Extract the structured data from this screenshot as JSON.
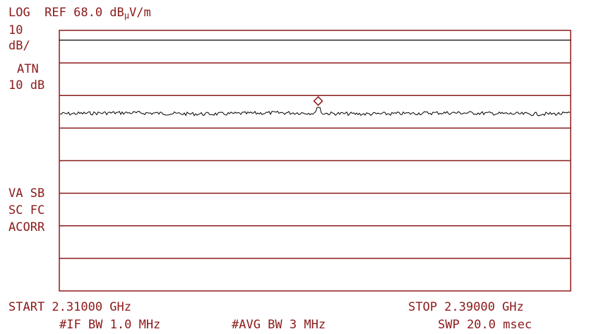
{
  "header": {
    "ref_line": "LOG  REF 68.0 dB",
    "ref_sub": "µ",
    "ref_unit": "V/m"
  },
  "side_labels": {
    "scale_value": "10",
    "scale_unit": "dB/",
    "atn_label": "ATN",
    "atn_value": "10 dB",
    "va_sb": "VA SB",
    "sc_fc": "SC FC",
    "acorr": "ACORR"
  },
  "footer": {
    "start": "START 2.31000 GHz",
    "stop": "STOP 2.39000 GHz",
    "if_bw": "#IF BW 1.0 MHz",
    "avg_bw": "#AVG BW 3 MHz",
    "swp": "SWP 20.0 msec"
  },
  "chart_data": {
    "type": "line",
    "x_start_ghz": 2.31,
    "x_stop_ghz": 2.39,
    "ref_level_dbuv_m": 68.0,
    "db_per_div": 10,
    "y_divisions": 8,
    "x_divisions": 1,
    "reference_line_dbuv_m": 65.0,
    "noise_floor_dbuv_m": 42.5,
    "marker": {
      "x_ghz": 2.3505,
      "y_dbuv_m": 45.0
    },
    "grid": true,
    "colors": {
      "grid": "#8b1a1a",
      "trace": "#000000",
      "marker": "#8b1a1a"
    }
  }
}
